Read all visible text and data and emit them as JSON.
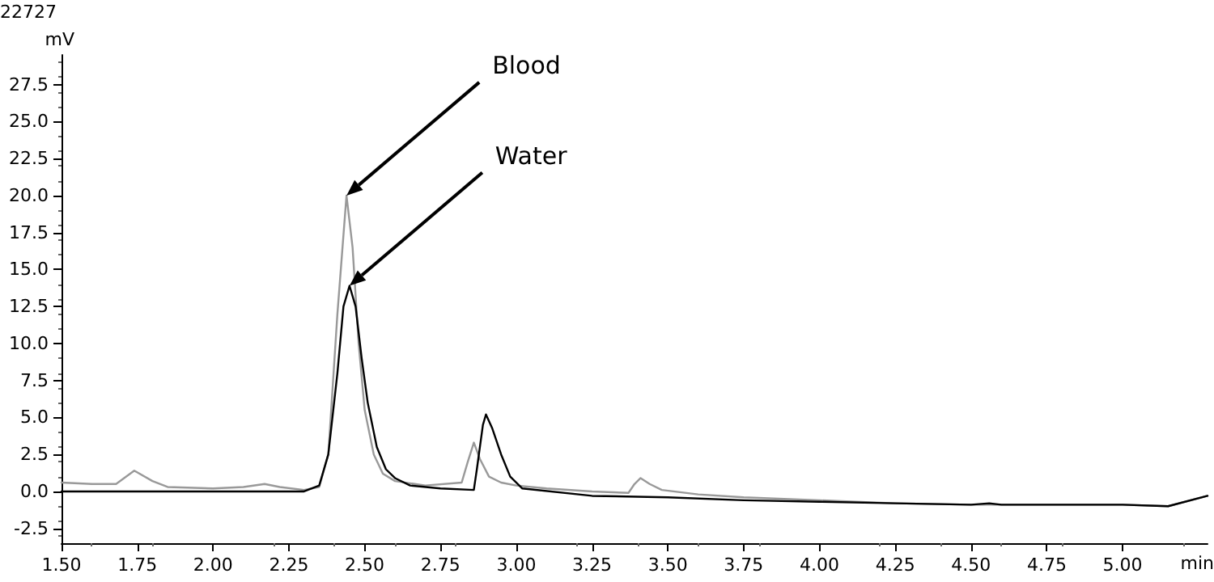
{
  "chart_data": {
    "type": "line",
    "xlabel": "min",
    "ylabel": "mV",
    "annotations": [
      "22727",
      "Blood",
      "Water"
    ],
    "xlim": [
      1.5,
      5.28
    ],
    "ylim": [
      -3.5,
      29.5
    ],
    "xticks": [
      {
        "value": 1.5,
        "label": "1.50"
      },
      {
        "value": 1.75,
        "label": "1.75"
      },
      {
        "value": 2,
        "label": "2.00"
      },
      {
        "value": 2.25,
        "label": "2.25"
      },
      {
        "value": 2.5,
        "label": "2.50"
      },
      {
        "value": 2.75,
        "label": "2.75"
      },
      {
        "value": 3,
        "label": "3.00"
      },
      {
        "value": 3.25,
        "label": "3.25"
      },
      {
        "value": 3.5,
        "label": "3.50"
      },
      {
        "value": 3.75,
        "label": "3.75"
      },
      {
        "value": 4,
        "label": "4.00"
      },
      {
        "value": 4.25,
        "label": "4.25"
      },
      {
        "value": 4.5,
        "label": "4.50"
      },
      {
        "value": 4.75,
        "label": "4.75"
      },
      {
        "value": 5,
        "label": "5.00"
      }
    ],
    "yticks": [
      -2.5,
      {
        "value": 0,
        "label": "0.0"
      },
      2.5,
      {
        "value": 5,
        "label": "5.0"
      },
      7.5,
      {
        "value": 10,
        "label": "10.0"
      },
      12.5,
      {
        "value": 15,
        "label": "15.0"
      },
      17.5,
      {
        "value": 20,
        "label": "20.0"
      },
      22.5,
      {
        "value": 25,
        "label": "25.0"
      },
      27.5
    ],
    "grid": false,
    "marker": "none",
    "line_style": "solid",
    "series": [
      {
        "color": "#999999",
        "x": [
          1.5,
          1.6,
          1.68,
          1.74,
          1.8,
          1.85,
          2.0,
          2.1,
          2.17,
          2.22,
          2.3,
          2.35,
          2.38,
          2.41,
          2.44,
          2.46,
          2.48,
          2.5,
          2.53,
          2.56,
          2.6,
          2.7,
          2.82,
          2.84,
          2.86,
          2.88,
          2.91,
          2.95,
          3.0,
          3.1,
          3.25,
          3.37,
          3.39,
          3.41,
          3.44,
          3.48,
          3.6,
          3.75,
          4.0,
          4.25,
          4.5,
          4.75,
          5.0,
          5.15,
          5.28
        ],
        "values": [
          0.6,
          0.5,
          0.5,
          1.4,
          0.7,
          0.3,
          0.2,
          0.3,
          0.5,
          0.3,
          0.1,
          0.3,
          2.5,
          12.0,
          20.0,
          16.5,
          10.0,
          5.5,
          2.5,
          1.2,
          0.7,
          0.4,
          0.6,
          2.0,
          3.3,
          2.2,
          1.0,
          0.6,
          0.4,
          0.2,
          0.0,
          -0.1,
          0.5,
          0.9,
          0.5,
          0.1,
          -0.2,
          -0.4,
          -0.6,
          -0.8,
          -0.9,
          -0.9,
          -0.9,
          -1.0,
          -0.3
        ]
      },
      {
        "color": "#000000",
        "x": [
          1.5,
          2.0,
          2.3,
          2.35,
          2.38,
          2.41,
          2.43,
          2.45,
          2.47,
          2.49,
          2.51,
          2.54,
          2.57,
          2.6,
          2.65,
          2.75,
          2.86,
          2.87,
          2.89,
          2.9,
          2.92,
          2.95,
          2.98,
          3.02,
          3.25,
          3.5,
          3.75,
          4.0,
          4.25,
          4.5,
          4.56,
          4.6,
          5.0,
          5.15,
          5.28
        ],
        "values": [
          0.0,
          0.0,
          0.0,
          0.4,
          2.5,
          8.0,
          12.5,
          13.9,
          12.5,
          9.0,
          6.0,
          3.0,
          1.5,
          0.9,
          0.4,
          0.2,
          0.1,
          1.5,
          4.5,
          5.2,
          4.3,
          2.5,
          1.0,
          0.2,
          -0.3,
          -0.4,
          -0.6,
          -0.7,
          -0.8,
          -0.9,
          -0.8,
          -0.9,
          -0.9,
          -1.0,
          -0.3
        ]
      }
    ]
  }
}
